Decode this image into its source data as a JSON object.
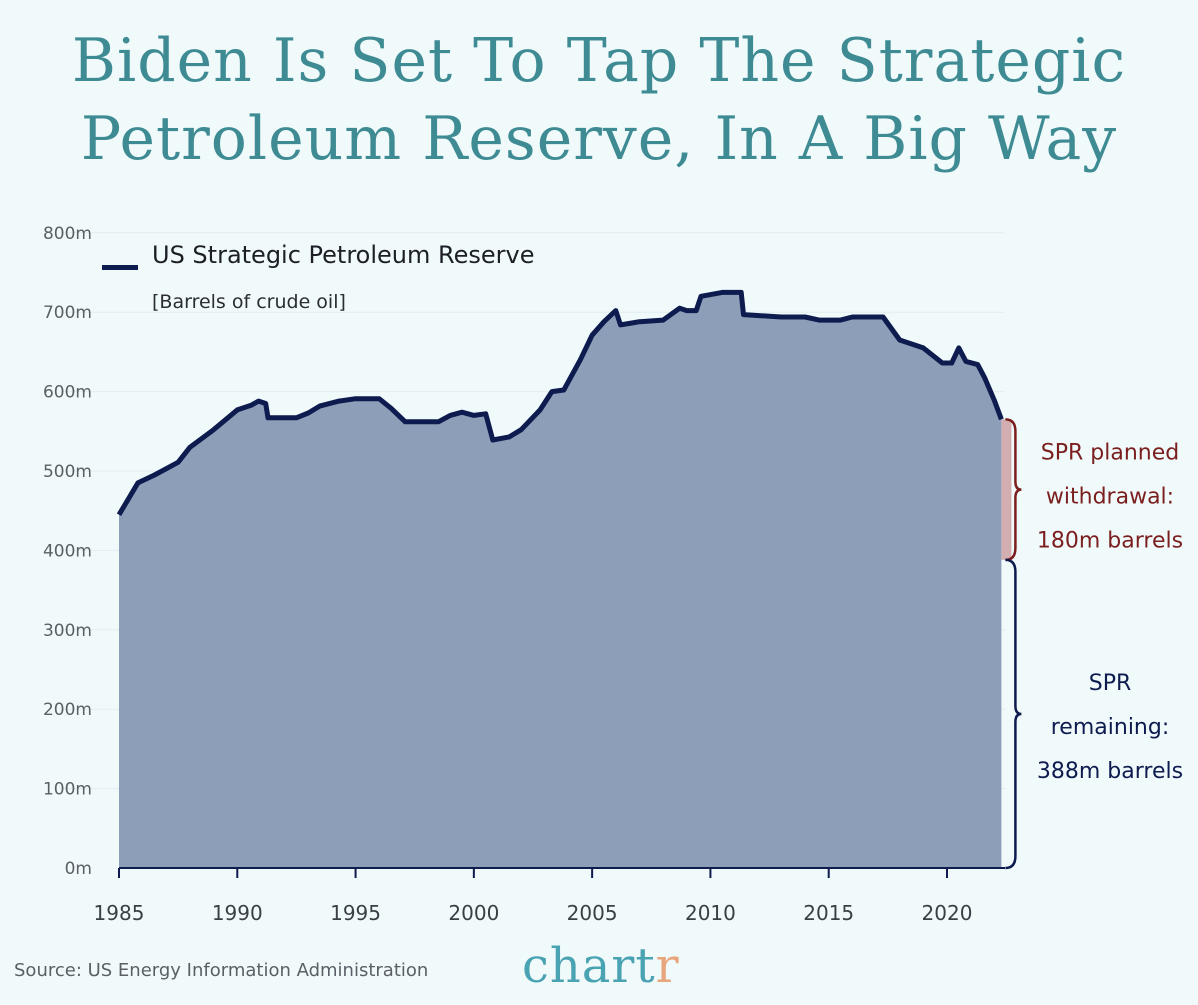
{
  "title_line1": "Biden Is Set To Tap The Strategic",
  "title_line2": "Petroleum Reserve, In A Big Way",
  "source": "Source: US Energy Information Administration",
  "logo": {
    "main": "chart",
    "accent": "r"
  },
  "colors": {
    "background": "#f1fafb",
    "title": "#3e8b94",
    "line": "#0d1b4f",
    "area": "#8d9fb8",
    "withdrawal": "#7a1e1e",
    "withdrawal_fill": "#d3aeb0"
  },
  "chart_data": {
    "type": "area",
    "legend": {
      "label": "US Strategic Petroleum Reserve",
      "sublabel": "[Barrels of crude oil]",
      "placement": "top-left"
    },
    "ylim": [
      0,
      800
    ],
    "xlim": [
      1985,
      2022.6
    ],
    "yticks": [
      "0m",
      "100m",
      "200m",
      "300m",
      "400m",
      "500m",
      "600m",
      "700m",
      "800m"
    ],
    "ytick_values": [
      0,
      100,
      200,
      300,
      400,
      500,
      600,
      700,
      800
    ],
    "xticks": [
      "1985",
      "1990",
      "1995",
      "2000",
      "2005",
      "2010",
      "2015",
      "2020"
    ],
    "xtick_values": [
      1985,
      1990,
      1995,
      2000,
      2005,
      2010,
      2015,
      2020
    ],
    "grid": "horizontal",
    "x": [
      1985.0,
      1985.3,
      1985.8,
      1986.5,
      1987.5,
      1988.0,
      1989.0,
      1990.0,
      1990.6,
      1990.9,
      1991.2,
      1991.3,
      1992.5,
      1993.0,
      1993.5,
      1994.3,
      1995.0,
      1996.0,
      1996.5,
      1997.1,
      1998.5,
      1999.0,
      1999.5,
      2000.0,
      2000.5,
      2000.8,
      2001.5,
      2002.0,
      2002.8,
      2003.3,
      2003.8,
      2004.5,
      2005.0,
      2005.5,
      2006.0,
      2006.2,
      2007.0,
      2008.0,
      2008.7,
      2009.0,
      2009.4,
      2009.6,
      2010.5,
      2011.3,
      2011.4,
      2013.0,
      2014.0,
      2014.6,
      2015.5,
      2016.0,
      2017.3,
      2018.0,
      2019.0,
      2019.8,
      2020.2,
      2020.5,
      2020.8,
      2021.3,
      2021.6,
      2022.0,
      2022.3
    ],
    "values": [
      445,
      460,
      485,
      495,
      511,
      530,
      552,
      577,
      583,
      588,
      585,
      567,
      567,
      573,
      582,
      588,
      591,
      591,
      579,
      562,
      562,
      570,
      574,
      570,
      572,
      539,
      543,
      552,
      577,
      600,
      602,
      640,
      671,
      688,
      702,
      684,
      688,
      690,
      705,
      702,
      702,
      720,
      725,
      725,
      697,
      694,
      694,
      690,
      690,
      694,
      694,
      665,
      655,
      636,
      636,
      655,
      638,
      634,
      617,
      589,
      565
    ],
    "annotations": [
      {
        "lines": [
          "SPR planned",
          "withdrawal:",
          "180m barrels"
        ],
        "from": 388,
        "to": 565,
        "color": "#7a1e1e"
      },
      {
        "lines": [
          "SPR",
          "remaining:",
          "388m barrels"
        ],
        "from": 0,
        "to": 388,
        "color": "#0d1b4f"
      }
    ]
  }
}
